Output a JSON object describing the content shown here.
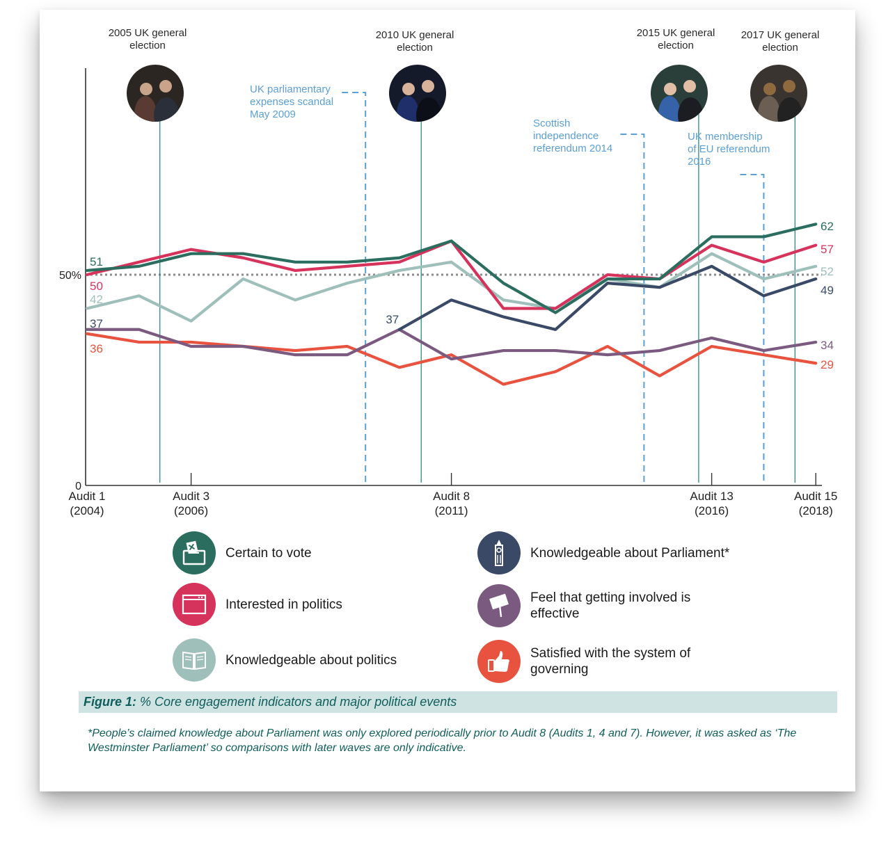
{
  "colors": {
    "certain_to_vote": "#2b6d5e",
    "interested_in_politics": "#d6335c",
    "knowledgeable_about_politics": "#9fbfbb",
    "knowledgeable_about_parliament": "#3a4a66",
    "getting_involved_effective": "#7b5a80",
    "satisfied_with_system": "#e8533f",
    "event_line": "#2a8a86",
    "dashed_event": "#5b9fd4",
    "caption_band": "#cfe3e3"
  },
  "chart_data": {
    "type": "line",
    "y_axis_labels": [
      "0",
      "50%"
    ],
    "ylim": [
      0,
      100
    ],
    "reference_line": 50,
    "x_axis_labels": [
      {
        "x": 1,
        "line1": "Audit 1",
        "line2": "(2004)"
      },
      {
        "x": 3,
        "line1": "Audit 3",
        "line2": "(2006)"
      },
      {
        "x": 8,
        "line1": "Audit 8",
        "line2": "(2011)"
      },
      {
        "x": 13,
        "line1": "Audit 13",
        "line2": "(2016)"
      },
      {
        "x": 15,
        "line1": "Audit 15",
        "line2": "(2018)"
      }
    ],
    "series": [
      {
        "name": "Knowledgeable about politics",
        "color_key": "knowledgeable_about_politics",
        "x": [
          1,
          2,
          3,
          4,
          5,
          6,
          7,
          8,
          9,
          10,
          11,
          12,
          13,
          14,
          15
        ],
        "values": [
          42,
          45,
          39,
          49,
          44,
          48,
          51,
          53,
          44,
          42,
          49,
          47,
          55,
          49,
          52
        ],
        "start_label": "42",
        "end_label": "52"
      },
      {
        "name": "Satisfied with the system of governing",
        "color_key": "satisfied_with_system",
        "x": [
          1,
          2,
          3,
          4,
          5,
          6,
          7,
          8,
          9,
          10,
          11,
          12,
          13,
          14,
          15
        ],
        "values": [
          36,
          34,
          34,
          33,
          32,
          33,
          28,
          31,
          24,
          27,
          33,
          26,
          33,
          31,
          29
        ],
        "start_label": "36",
        "end_label": "29"
      },
      {
        "name": "Feel that getting involved is effective",
        "color_key": "getting_involved_effective",
        "x": [
          1,
          2,
          3,
          4,
          5,
          6,
          7,
          8,
          9,
          10,
          11,
          12,
          13,
          14,
          15
        ],
        "values": [
          37,
          37,
          33,
          33,
          31,
          31,
          37,
          30,
          32,
          32,
          31,
          32,
          35,
          32,
          34
        ],
        "start_label": "",
        "end_label": "34"
      },
      {
        "name": "Knowledgeable about Parliament*",
        "color_key": "knowledgeable_about_parliament",
        "x": [
          7,
          8,
          9,
          10,
          11,
          12,
          13,
          14,
          15
        ],
        "values": [
          37,
          44,
          40,
          37,
          48,
          47,
          52,
          45,
          49
        ],
        "start_label": "37",
        "end_label": "49"
      },
      {
        "name": "Interested in politics",
        "color_key": "interested_in_politics",
        "x": [
          1,
          2,
          3,
          4,
          5,
          6,
          7,
          8,
          9,
          10,
          11,
          12,
          13,
          14,
          15
        ],
        "values": [
          50,
          53,
          56,
          54,
          51,
          52,
          53,
          58,
          42,
          42,
          50,
          49,
          57,
          53,
          57
        ],
        "start_label": "50",
        "end_label": "57"
      },
      {
        "name": "Certain to vote",
        "color_key": "certain_to_vote",
        "x": [
          1,
          2,
          3,
          4,
          5,
          6,
          7,
          8,
          9,
          10,
          11,
          12,
          13,
          14,
          15
        ],
        "values": [
          51,
          52,
          55,
          55,
          53,
          53,
          54,
          58,
          48,
          41,
          49,
          49,
          59,
          59,
          62
        ],
        "start_label": "51",
        "end_label": "62"
      }
    ],
    "elections": [
      {
        "x": 2.4,
        "line1": "2005 UK general",
        "line2": "election",
        "photo": "photo-2005-election"
      },
      {
        "x": 7.42,
        "line1": "2010 UK general",
        "line2": "election",
        "photo": "photo-2010-election"
      },
      {
        "x": 12.75,
        "line1": "2015 UK general",
        "line2": "election",
        "photo": "photo-2015-election"
      },
      {
        "x": 14.6,
        "line1": "2017 UK general",
        "line2": "election",
        "photo": "photo-2017-election"
      }
    ],
    "events": [
      {
        "x": 6.35,
        "lines": [
          "UK parliamentary",
          "expenses scandal",
          "May 2009"
        ]
      },
      {
        "x": 11.7,
        "lines": [
          "Scottish",
          "independence",
          "referendum 2014"
        ]
      },
      {
        "x": 14.0,
        "lines": [
          "UK membership",
          "of EU referendum",
          "2016"
        ]
      }
    ],
    "legend": [
      {
        "label": "Certain to vote",
        "icon": "ballot-box-icon",
        "color_key": "certain_to_vote"
      },
      {
        "label": "Knowledgeable about Parliament*",
        "icon": "big-ben-icon",
        "color_key": "knowledgeable_about_parliament"
      },
      {
        "label": "Interested in politics",
        "icon": "browser-window-icon",
        "color_key": "interested_in_politics"
      },
      {
        "label": "Feel that getting involved is effective",
        "icon": "placard-icon",
        "color_key": "getting_involved_effective"
      },
      {
        "label": "Knowledgeable about politics",
        "icon": "book-icon",
        "color_key": "knowledgeable_about_politics"
      },
      {
        "label": "Satisfied with the system of governing",
        "icon": "thumbs-up-icon",
        "color_key": "satisfied_with_system"
      }
    ]
  },
  "caption": {
    "figure_label": "Figure 1:",
    "text": " % Core engagement indicators and major political events"
  },
  "footnote": "*People’s claimed knowledge about Parliament was only explored periodically prior to Audit 8 (Audits 1, 4 and 7). However, it was asked as ‘The Westminster Parliament’ so comparisons with later waves are only indicative."
}
